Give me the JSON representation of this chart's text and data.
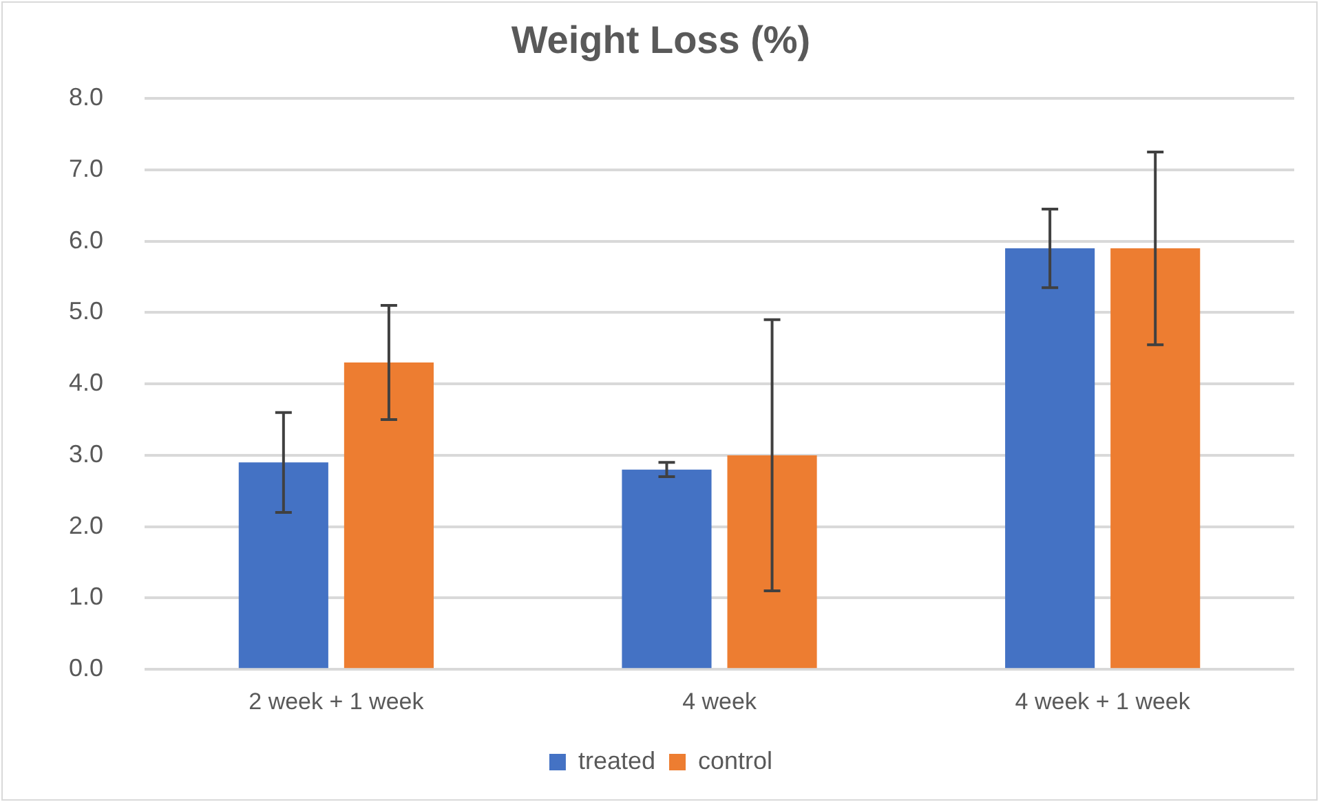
{
  "chart_data": {
    "type": "bar",
    "title": "Weight Loss (%)",
    "categories": [
      "2 week + 1 week",
      "4 week",
      "4 week + 1 week"
    ],
    "series": [
      {
        "name": "treated",
        "color": "#4472c4",
        "values": [
          2.9,
          2.8,
          5.9
        ],
        "errors": [
          0.7,
          0.1,
          0.55
        ]
      },
      {
        "name": "control",
        "color": "#ed7d31",
        "values": [
          4.3,
          3.0,
          5.9
        ],
        "errors": [
          0.8,
          1.9,
          1.35
        ]
      }
    ],
    "ylim": [
      0,
      8
    ],
    "yticks": [
      {
        "value": 0,
        "label": "0.0"
      },
      {
        "value": 1,
        "label": "1.0"
      },
      {
        "value": 2,
        "label": "2.0"
      },
      {
        "value": 3,
        "label": "3.0"
      },
      {
        "value": 4,
        "label": "4.0"
      },
      {
        "value": 5,
        "label": "5.0"
      },
      {
        "value": 6,
        "label": "6.0"
      },
      {
        "value": 7,
        "label": "7.0"
      },
      {
        "value": 8,
        "label": "8.0"
      }
    ],
    "grid": "y",
    "legend": "bottom"
  }
}
